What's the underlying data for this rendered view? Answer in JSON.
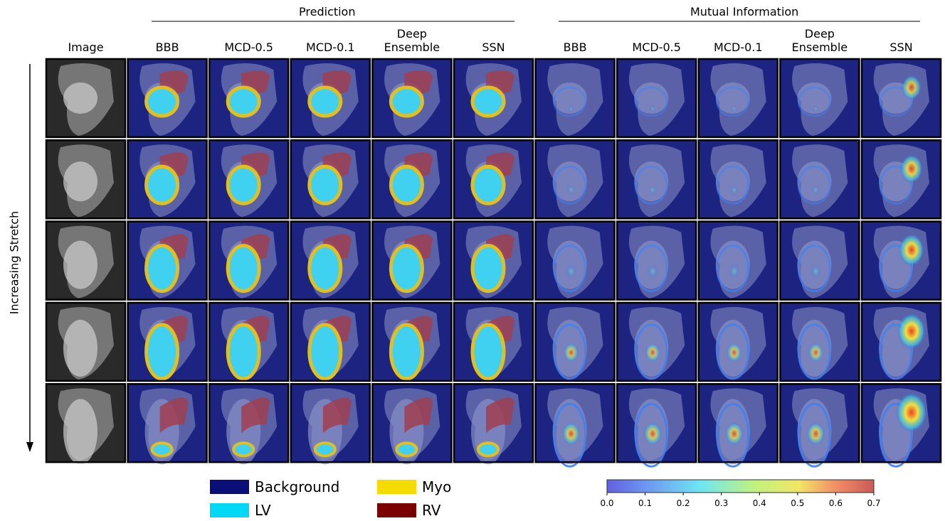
{
  "header": {
    "prediction": "Prediction",
    "mutual_information": "Mutual Information"
  },
  "columns": {
    "image": "Image",
    "prediction": [
      "BBB",
      "MCD-0.5",
      "MCD-0.1",
      "Deep Ensemble",
      "SSN"
    ],
    "mutual_information": [
      "BBB",
      "MCD-0.5",
      "MCD-0.1",
      "Deep Ensemble",
      "SSN"
    ]
  },
  "side_label": "Increasing Stretch",
  "legend": [
    {
      "label": "Background",
      "color": "#0a0f78"
    },
    {
      "label": "LV",
      "color": "#00d8f5"
    },
    {
      "label": "Myo",
      "color": "#f5dc00"
    },
    {
      "label": "RV",
      "color": "#7a0000"
    }
  ],
  "colorbar": {
    "ticks": [
      "0.0",
      "0.1",
      "0.2",
      "0.3",
      "0.4",
      "0.5",
      "0.6",
      "0.7"
    ]
  }
}
